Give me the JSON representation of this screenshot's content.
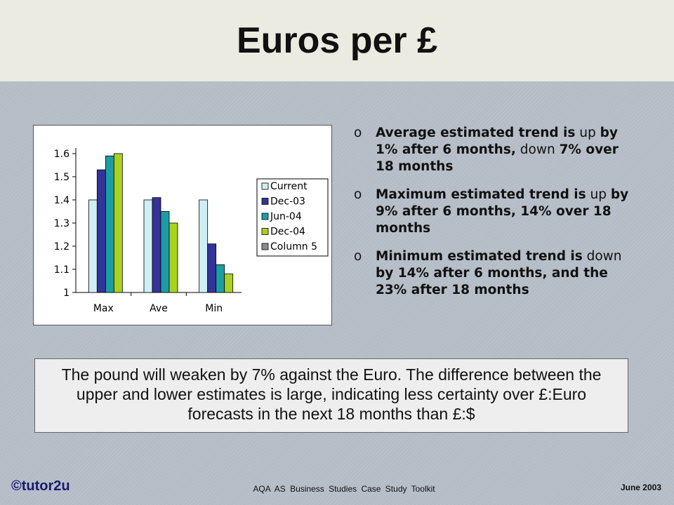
{
  "title": "Euros per £",
  "bullets": [
    {
      "marker": "o",
      "parts": [
        {
          "t": "Average estimated trend is",
          "b": true
        },
        {
          "t": " up ",
          "b": false
        },
        {
          "t": "by 1% after 6 months,",
          "b": true
        },
        {
          "t": " down ",
          "b": false
        },
        {
          "t": "7% over 18 months",
          "b": true
        }
      ]
    },
    {
      "marker": "o",
      "parts": [
        {
          "t": "Maximum estimated trend is",
          "b": true
        },
        {
          "t": " up ",
          "b": false
        },
        {
          "t": "by 9% after 6 months, 14% over 18 months",
          "b": true
        }
      ]
    },
    {
      "marker": "o",
      "parts": [
        {
          "t": "Minimum estimated trend is",
          "b": true
        },
        {
          "t": " down ",
          "b": false
        },
        {
          "t": "by 14% after 6 months, and the 23% after 18 months",
          "b": true
        }
      ]
    }
  ],
  "summary": "The pound will weaken by 7% against the Euro.  The difference between the upper and lower estimates is large, indicating less certainty over £:Euro forecasts in the next 18 months than £:$",
  "footer": {
    "brand": "©tutor2u",
    "toolkit": "AQA AS Business Studies Case Study Toolkit",
    "date": "June 2003"
  },
  "chart_data": {
    "type": "bar",
    "categories": [
      "Max",
      "Ave",
      "Min"
    ],
    "series": [
      {
        "name": "Current",
        "color": "#cfeff4",
        "values": [
          1.4,
          1.4,
          1.4
        ]
      },
      {
        "name": "Dec-03",
        "color": "#33339a",
        "values": [
          1.53,
          1.41,
          1.21
        ]
      },
      {
        "name": "Jun-04",
        "color": "#1c9da3",
        "values": [
          1.59,
          1.35,
          1.12
        ]
      },
      {
        "name": "Dec-04",
        "color": "#a9d120",
        "values": [
          1.6,
          1.3,
          1.08
        ]
      },
      {
        "name": "Column 5",
        "color": "#8c8c8c",
        "values": [
          null,
          null,
          null
        ]
      }
    ],
    "ylim": [
      1,
      1.6
    ],
    "yticks": [
      "1",
      "1.1",
      "1.2",
      "1.3",
      "1.4",
      "1.5",
      "1.6"
    ],
    "grid": false,
    "legend": "right"
  }
}
